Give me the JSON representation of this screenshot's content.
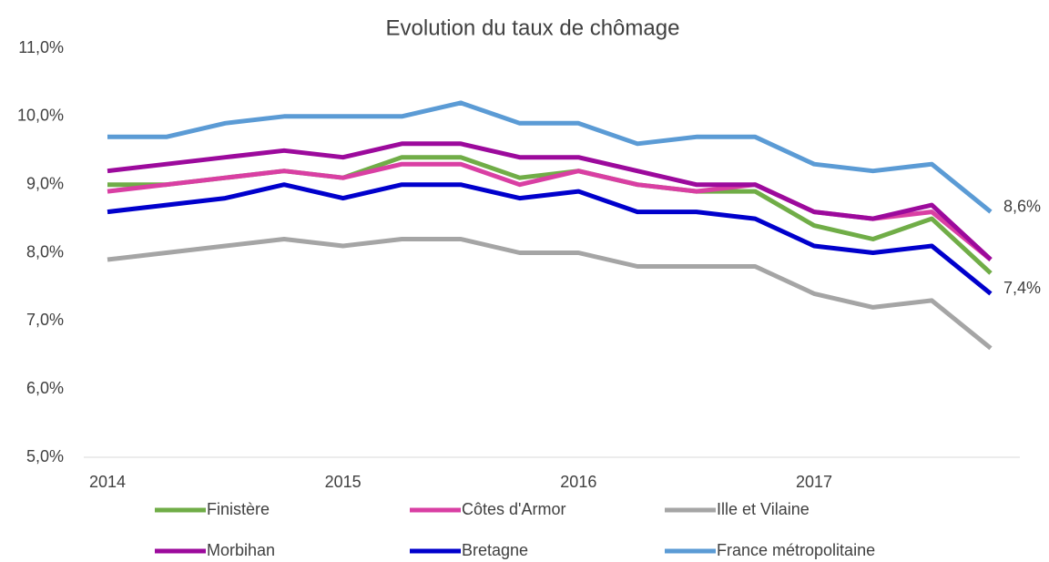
{
  "chart_data": {
    "type": "line",
    "title": "Evolution du taux de chômage",
    "categories": [
      "2014",
      null,
      null,
      null,
      "2015",
      null,
      null,
      null,
      "2016",
      null,
      null,
      null,
      "2017",
      null,
      null,
      null
    ],
    "series": [
      {
        "name": "Finistère",
        "color": "#70ad47",
        "values": [
          9.0,
          9.0,
          9.1,
          9.2,
          9.1,
          9.4,
          9.4,
          9.1,
          9.2,
          9.0,
          8.9,
          8.9,
          8.4,
          8.2,
          8.5,
          7.7
        ]
      },
      {
        "name": "Côtes d'Armor",
        "color": "#d93fa3",
        "values": [
          8.9,
          9.0,
          9.1,
          9.2,
          9.1,
          9.3,
          9.3,
          9.0,
          9.2,
          9.0,
          8.9,
          9.0,
          8.6,
          8.5,
          8.6,
          7.9
        ]
      },
      {
        "name": "Ille et Vilaine",
        "color": "#a5a5a5",
        "values": [
          7.9,
          8.0,
          8.1,
          8.2,
          8.1,
          8.2,
          8.2,
          8.0,
          8.0,
          7.8,
          7.8,
          7.8,
          7.4,
          7.2,
          7.3,
          6.6
        ]
      },
      {
        "name": "Morbihan",
        "color": "#9c0a9c",
        "values": [
          9.2,
          9.3,
          9.4,
          9.5,
          9.4,
          9.6,
          9.6,
          9.4,
          9.4,
          9.2,
          9.0,
          9.0,
          8.6,
          8.5,
          8.7,
          7.9
        ]
      },
      {
        "name": "Bretagne",
        "color": "#0000cc",
        "values": [
          8.6,
          8.7,
          8.8,
          9.0,
          8.8,
          9.0,
          9.0,
          8.8,
          8.9,
          8.6,
          8.6,
          8.5,
          8.1,
          8.0,
          8.1,
          7.4
        ],
        "value_labels": [
          null,
          null,
          null,
          null,
          null,
          null,
          null,
          null,
          null,
          null,
          null,
          null,
          null,
          null,
          null,
          "7,4%"
        ]
      },
      {
        "name": "France métropolitaine",
        "color": "#5b9bd5",
        "values": [
          9.7,
          9.7,
          9.9,
          10.0,
          10.0,
          10.0,
          10.2,
          9.9,
          9.9,
          9.6,
          9.7,
          9.7,
          9.3,
          9.2,
          9.3,
          8.6
        ],
        "value_labels": [
          null,
          null,
          null,
          null,
          null,
          null,
          null,
          null,
          null,
          null,
          null,
          null,
          null,
          null,
          null,
          "8,6%"
        ]
      }
    ],
    "ylim": [
      5,
      11
    ],
    "yticks": [
      {
        "value": 5,
        "label": "5,0%"
      },
      {
        "value": 6,
        "label": "6,0%"
      },
      {
        "value": 7,
        "label": "7,0%"
      },
      {
        "value": 8,
        "label": "8,0%"
      },
      {
        "value": 9,
        "label": "9,0%"
      },
      {
        "value": 10,
        "label": "10,0%"
      },
      {
        "value": 11,
        "label": "11,0%"
      }
    ],
    "grid": false,
    "legend": "bottom"
  }
}
